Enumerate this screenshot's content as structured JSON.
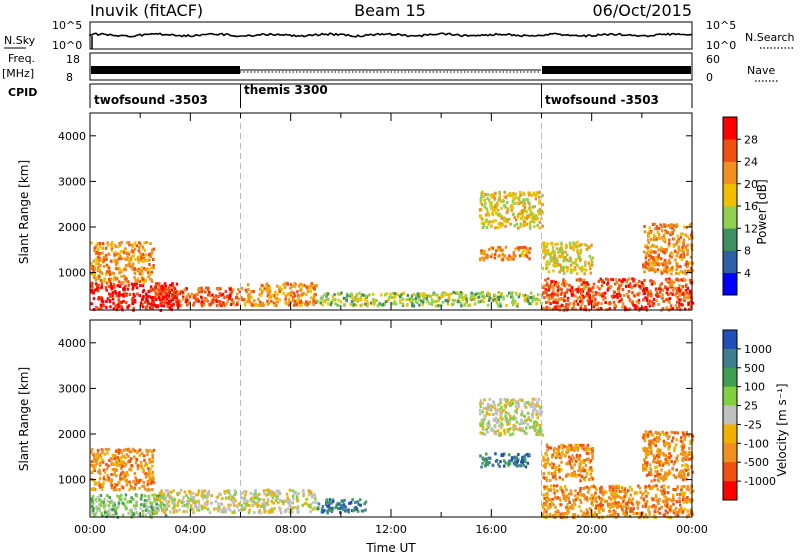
{
  "header": {
    "station": "Inuvik (fitACF)",
    "beam": "Beam 15",
    "date": "06/Oct/2015"
  },
  "top_panels": {
    "nsky_label": "N.Sky",
    "nsky_ticks": [
      "10^5",
      "10^0"
    ],
    "nsearch_label": "N.Search",
    "nsearch_ticks": [
      "10^5",
      "10^0"
    ],
    "freq_label": "Freq.",
    "freq_unit": "[MHz]",
    "freq_ticks": [
      "18",
      "8"
    ],
    "nave_label": "Nave",
    "nave_ticks": [
      "60",
      "0"
    ],
    "cpid_label": "CPID",
    "cpid_segments": [
      {
        "name": "twofsound -3503",
        "start_h": 0,
        "end_h": 6
      },
      {
        "name": "themis 3300",
        "start_h": 6,
        "end_h": 18
      },
      {
        "name": "twofsound -3503",
        "start_h": 18,
        "end_h": 24
      }
    ]
  },
  "chart_data": [
    {
      "type": "heatmap",
      "title": "",
      "quantity": "Power",
      "xlabel": "",
      "ylabel": "Slant Range [km]",
      "xlim": [
        0,
        24
      ],
      "ylim": [
        180,
        4500
      ],
      "yticks": [
        "1000",
        "2000",
        "3000",
        "4000"
      ],
      "colorbar_label": "Power [dB]",
      "colorbar_ticks": [
        "4",
        "8",
        "12",
        "16",
        "20",
        "24",
        "28"
      ],
      "colorbar_colors": [
        "#0000ff",
        "#2f5fa8",
        "#3f9060",
        "#8fd050",
        "#f0c000",
        "#f09020",
        "#f05010",
        "#ff0000"
      ],
      "scatter_regions": [
        {
          "t": [
            0,
            3.5
          ],
          "r": [
            200,
            800
          ],
          "level": 7
        },
        {
          "t": [
            0,
            2.5
          ],
          "r": [
            800,
            1700
          ],
          "level": 5
        },
        {
          "t": [
            2.5,
            6
          ],
          "r": [
            300,
            700
          ],
          "level": 6
        },
        {
          "t": [
            6,
            9
          ],
          "r": [
            300,
            800
          ],
          "level": 5
        },
        {
          "t": [
            9,
            18
          ],
          "r": [
            300,
            600
          ],
          "level": 3
        },
        {
          "t": [
            15.5,
            18
          ],
          "r": [
            2000,
            2800
          ],
          "level": 4
        },
        {
          "t": [
            15.5,
            17.5
          ],
          "r": [
            1300,
            1600
          ],
          "level": 5
        },
        {
          "t": [
            18,
            24
          ],
          "r": [
            200,
            900
          ],
          "level": 6
        },
        {
          "t": [
            18,
            20
          ],
          "r": [
            1000,
            1700
          ],
          "level": 4
        },
        {
          "t": [
            22,
            24
          ],
          "r": [
            1000,
            2100
          ],
          "level": 5
        }
      ]
    },
    {
      "type": "heatmap",
      "title": "",
      "quantity": "Velocity",
      "xlabel": "Time UT",
      "ylabel": "Slant Range [km]",
      "xlim": [
        0,
        24
      ],
      "ylim": [
        180,
        4500
      ],
      "yticks": [
        "1000",
        "2000",
        "3000",
        "4000"
      ],
      "xticks": [
        "00:00",
        "04:00",
        "08:00",
        "12:00",
        "16:00",
        "20:00",
        "00:00"
      ],
      "colorbar_label": "Velocity [m s⁻¹]",
      "colorbar_ticks": [
        "1000",
        "500",
        "100",
        "25",
        "-25",
        "-100",
        "-500",
        "-1000"
      ],
      "colorbar_colors": [
        "#2050b8",
        "#3f7f8f",
        "#3f9e50",
        "#80d040",
        "#c0c0c0",
        "#f0b000",
        "#f09020",
        "#f05010",
        "#ff0000"
      ],
      "scatter_regions": [
        {
          "t": [
            0,
            2.5
          ],
          "r": [
            800,
            1700
          ],
          "level": 6
        },
        {
          "t": [
            0,
            3
          ],
          "r": [
            200,
            700
          ],
          "level": 3
        },
        {
          "t": [
            2.5,
            6
          ],
          "r": [
            300,
            800
          ],
          "level": 4
        },
        {
          "t": [
            6,
            9
          ],
          "r": [
            300,
            800
          ],
          "level": 4
        },
        {
          "t": [
            9,
            11
          ],
          "r": [
            300,
            600
          ],
          "level": 1
        },
        {
          "t": [
            15.5,
            18
          ],
          "r": [
            2000,
            2800
          ],
          "level": 4
        },
        {
          "t": [
            15.5,
            17.5
          ],
          "r": [
            1300,
            1600
          ],
          "level": 1
        },
        {
          "t": [
            18,
            24
          ],
          "r": [
            200,
            900
          ],
          "level": 6
        },
        {
          "t": [
            18,
            20
          ],
          "r": [
            1000,
            1800
          ],
          "level": 6
        },
        {
          "t": [
            22,
            24
          ],
          "r": [
            1000,
            2100
          ],
          "level": 6
        }
      ]
    }
  ]
}
